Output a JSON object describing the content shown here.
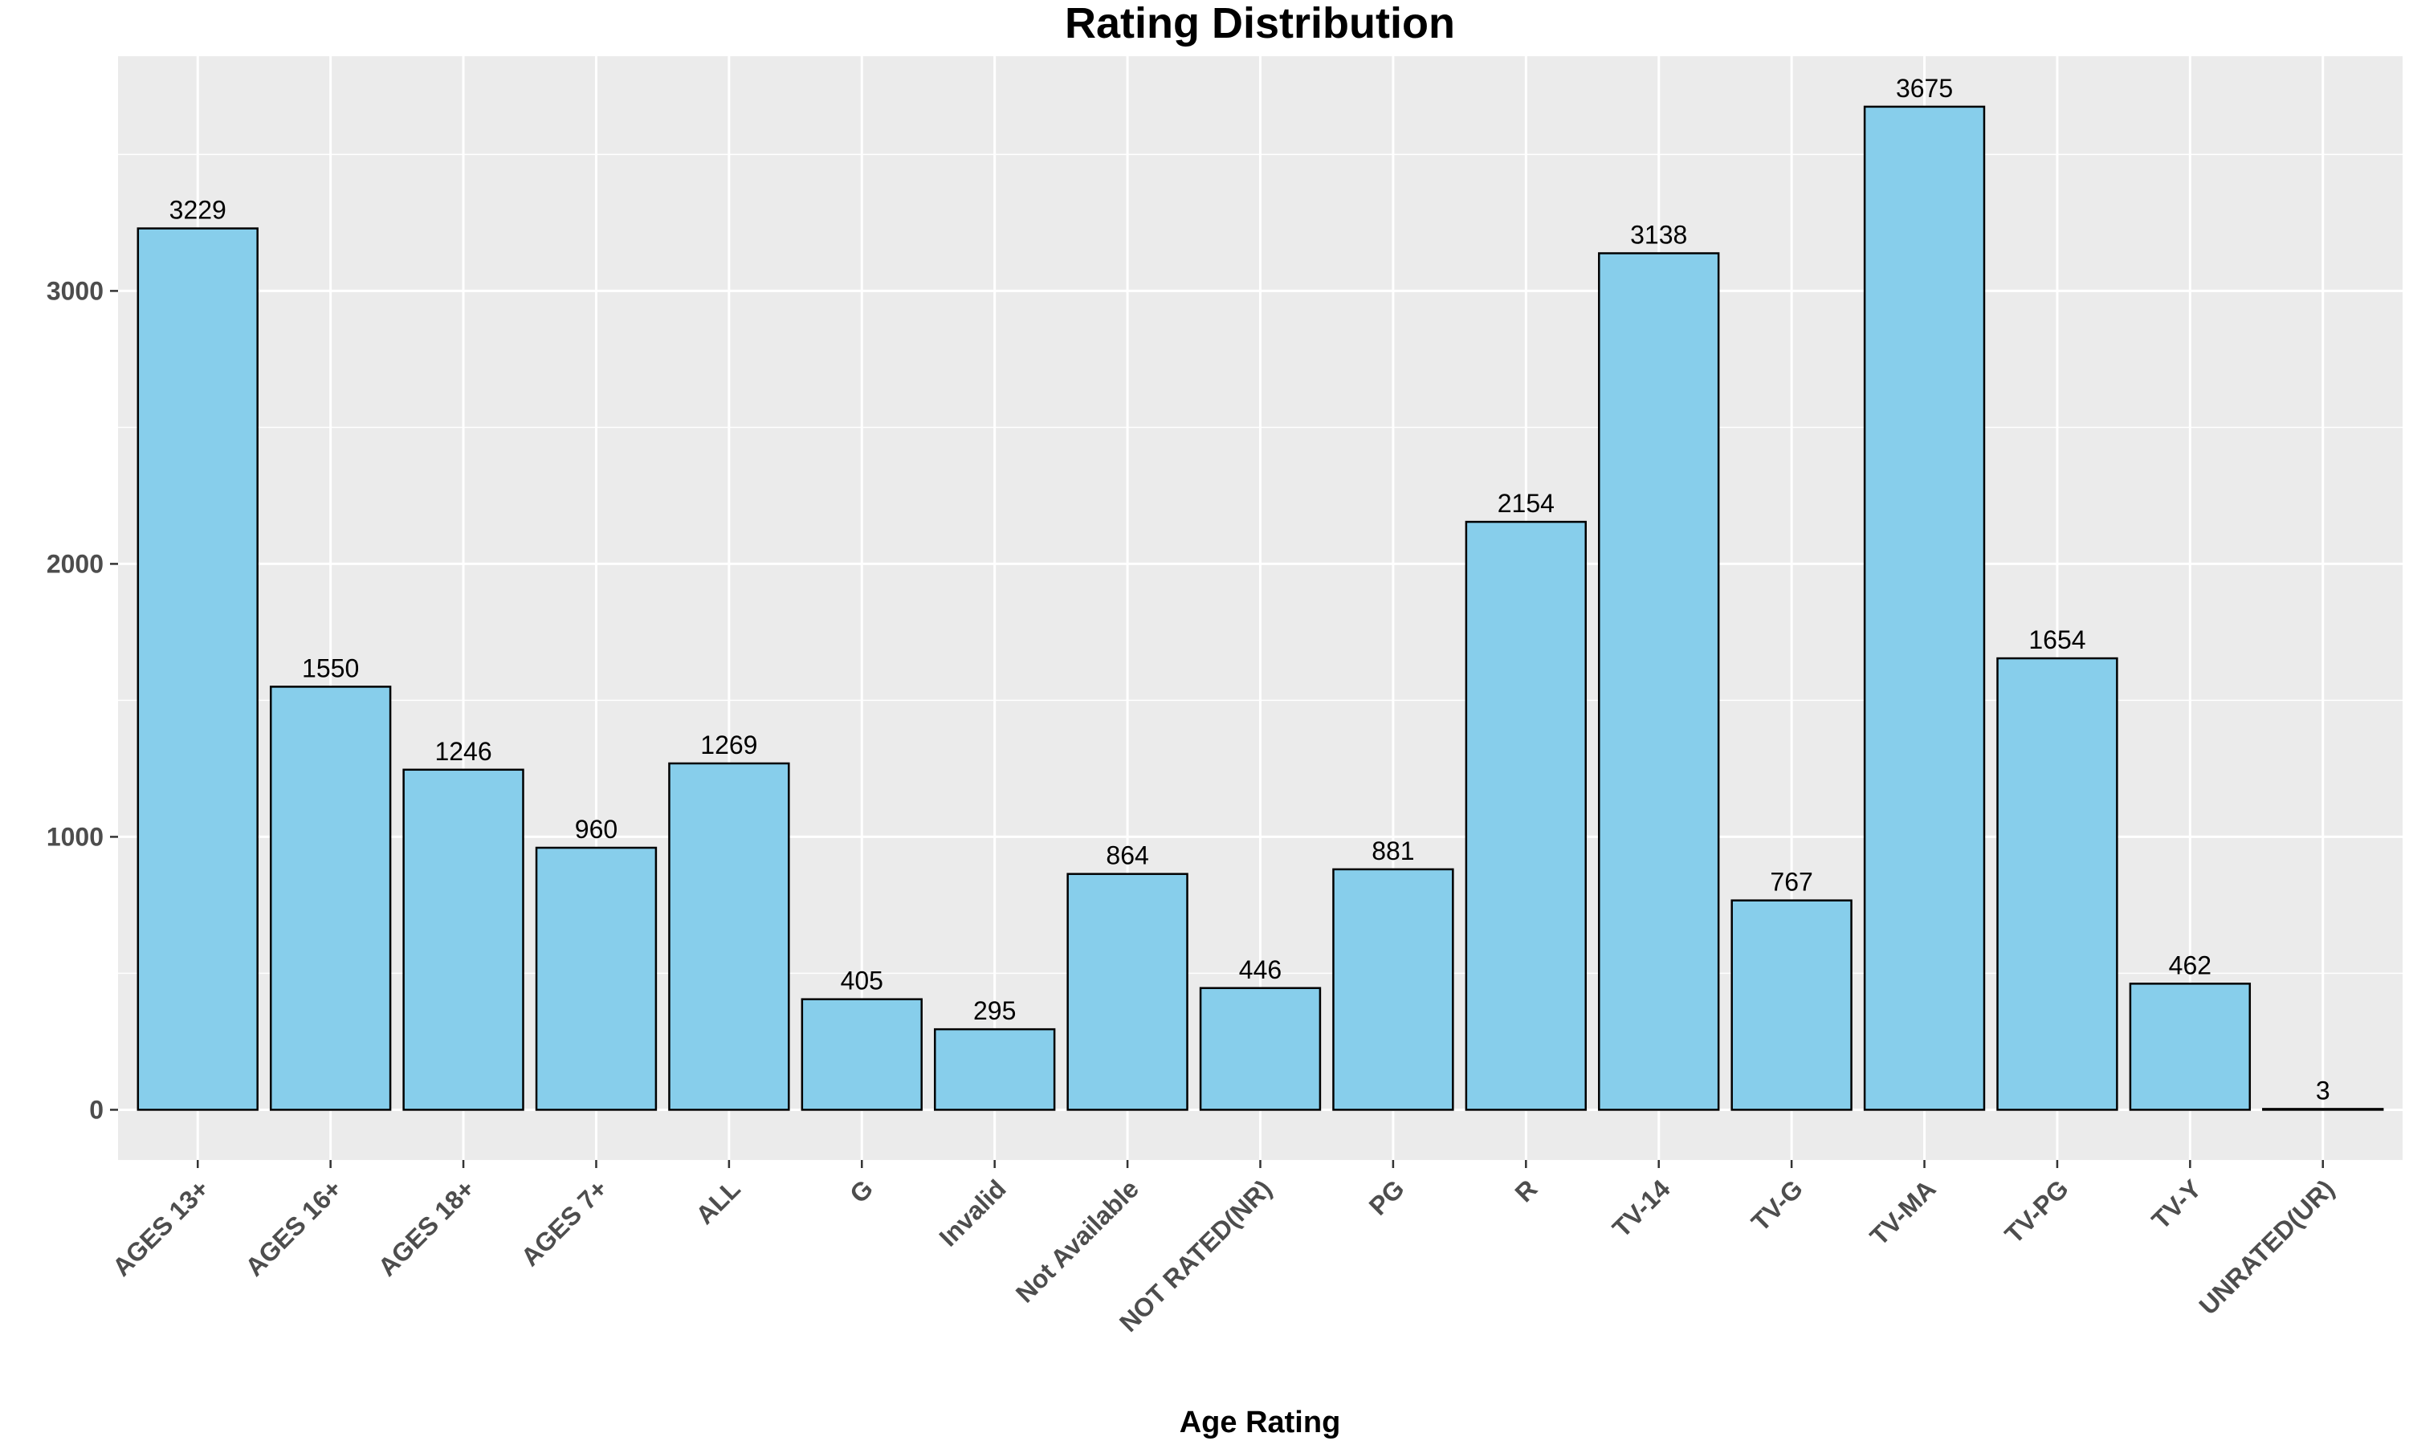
{
  "chart_data": {
    "type": "bar",
    "title": "Rating Distribution",
    "xlabel": "Age Rating",
    "ylabel": "",
    "categories": [
      "AGES 13+",
      "AGES 16+",
      "AGES 18+",
      "AGES 7+",
      "ALL",
      "G",
      "Invalid",
      "Not Available",
      "NOT RATED(NR)",
      "PG",
      "R",
      "TV-14",
      "TV-G",
      "TV-MA",
      "TV-PG",
      "TV-Y",
      "UNRATED(UR)"
    ],
    "values": [
      3229,
      1550,
      1246,
      960,
      1269,
      405,
      295,
      864,
      446,
      881,
      2154,
      3138,
      767,
      3675,
      1654,
      462,
      3
    ],
    "ylim": [
      -184,
      3860
    ],
    "yticks": [
      0,
      1000,
      2000,
      3000
    ],
    "grid": true,
    "legend": "none",
    "colors": {
      "bar_fill": "#87CEEB",
      "bar_stroke": "#000000",
      "panel_background": "#EBEBEB",
      "grid_line": "#FFFFFF"
    }
  }
}
